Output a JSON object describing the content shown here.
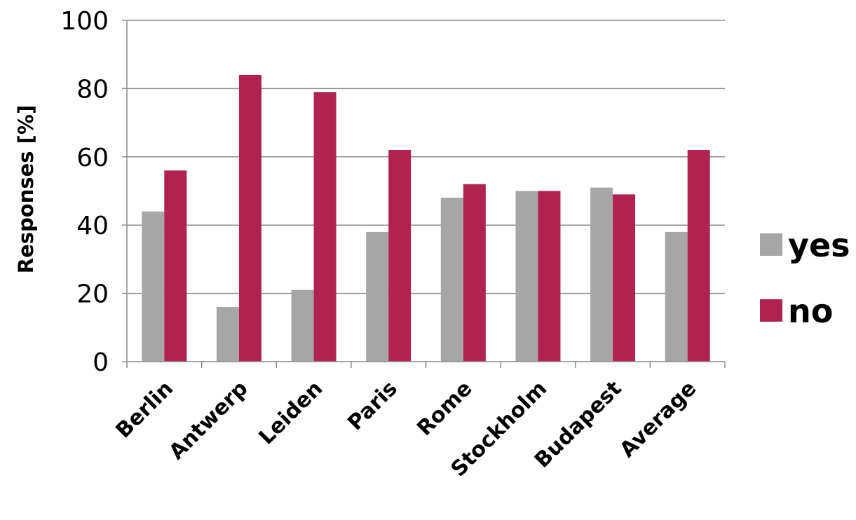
{
  "chart_data": {
    "type": "bar",
    "title": "",
    "xlabel": "",
    "ylabel": "Responses [%]",
    "ylim": [
      0,
      100
    ],
    "yticks": [
      0,
      20,
      40,
      60,
      80,
      100
    ],
    "grid": true,
    "legend_position": "right",
    "categories": [
      "Berlin",
      "Antwerp",
      "Leiden",
      "Paris",
      "Rome",
      "Stockholm",
      "Budapest",
      "Average"
    ],
    "series": [
      {
        "name": "yes",
        "color": "#a6a6a6",
        "values": [
          44,
          16,
          21,
          38,
          48,
          50,
          51,
          38
        ]
      },
      {
        "name": "no",
        "color": "#b0224f",
        "values": [
          56,
          84,
          79,
          62,
          52,
          50,
          49,
          62
        ]
      }
    ]
  }
}
